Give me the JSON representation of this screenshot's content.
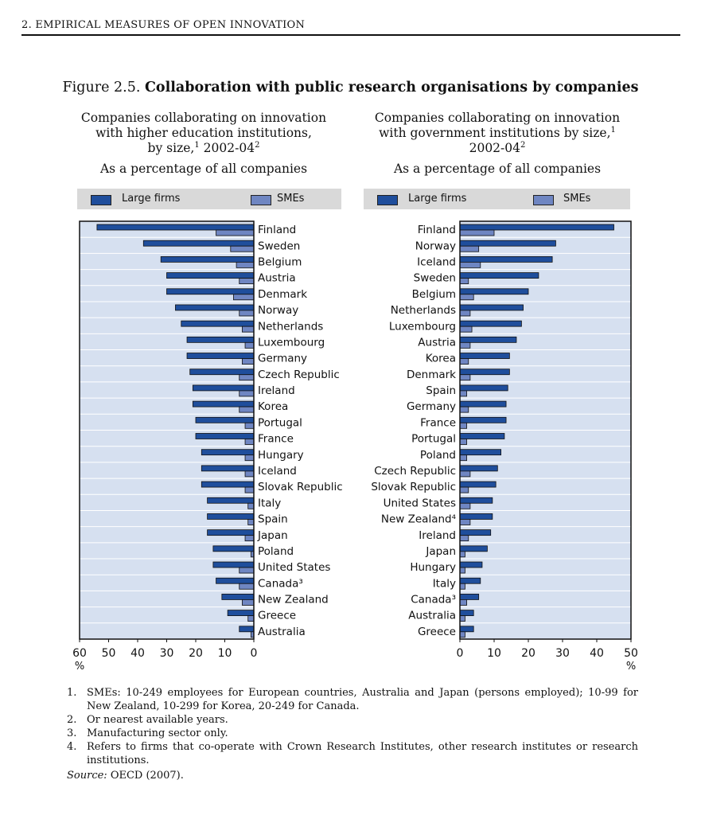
{
  "page": {
    "header": "2.  EMPIRICAL MEASURES OF OPEN INNOVATION",
    "figure_number": "Figure 2.5.",
    "figure_title": "Collaboration with public research organisations by companies"
  },
  "colors": {
    "large": "#1f4e9c",
    "sme": "#6f86c2",
    "plot_bg": "#d6e0f0",
    "legend_bg": "#d9d9d9"
  },
  "left_panel": {
    "title_line1": "Companies collaborating on innovation",
    "title_line2": "with higher education institutions,",
    "title_line3a": "by size,",
    "title_sup1": "1",
    "title_line3b": " 2002-04",
    "title_sup2": "2",
    "unit": "As a percentage of all companies"
  },
  "right_panel": {
    "title_line1": "Companies collaborating on innovation",
    "title_line2a": "with government institutions by size,",
    "title_sup1": "1",
    "title_line3": "2002-04",
    "title_sup2": "2",
    "unit": "As a percentage of all companies"
  },
  "legend": {
    "large": "Large firms",
    "sme": "SMEs"
  },
  "chart_data": [
    {
      "type": "bar",
      "orientation": "horizontal",
      "x_direction": "reversed",
      "categories": [
        "Finland",
        "Sweden",
        "Belgium",
        "Austria",
        "Denmark",
        "Norway",
        "Netherlands",
        "Luxembourg",
        "Germany",
        "Czech Republic",
        "Ireland",
        "Korea",
        "Portugal",
        "France",
        "Hungary",
        "Iceland",
        "Slovak Republic",
        "Italy",
        "Spain",
        "Japan",
        "Poland",
        "United States",
        "Canada³",
        "New Zealand",
        "Greece",
        "Australia"
      ],
      "series": [
        {
          "name": "Large firms",
          "values": [
            54,
            38,
            32,
            30,
            30,
            27,
            25,
            23,
            23,
            22,
            21,
            21,
            20,
            20,
            18,
            18,
            18,
            16,
            16,
            16,
            14,
            14,
            13,
            11,
            9,
            5
          ]
        },
        {
          "name": "SMEs",
          "values": [
            13,
            8,
            6,
            5,
            7,
            5,
            4,
            3,
            4,
            5,
            5,
            5,
            3,
            3,
            3,
            3,
            3,
            2,
            2,
            3,
            1,
            5,
            5,
            4,
            2,
            1
          ]
        }
      ],
      "xlim": [
        0,
        60
      ],
      "xticks": [
        60,
        50,
        40,
        30,
        20,
        10,
        0
      ],
      "unit_label": "%",
      "legend": "top"
    },
    {
      "type": "bar",
      "orientation": "horizontal",
      "categories": [
        "Finland",
        "Norway",
        "Iceland",
        "Sweden",
        "Belgium",
        "Netherlands",
        "Luxembourg",
        "Austria",
        "Korea",
        "Denmark",
        "Spain",
        "Germany",
        "France",
        "Portugal",
        "Poland",
        "Czech Republic",
        "Slovak Republic",
        "United States",
        "New Zealand⁴",
        "Ireland",
        "Japan",
        "Hungary",
        "Italy",
        "Canada³",
        "Australia",
        "Greece"
      ],
      "series": [
        {
          "name": "Large firms",
          "values": [
            45,
            28,
            27,
            23,
            20,
            18.5,
            18,
            16.5,
            14.5,
            14.5,
            14,
            13.5,
            13.5,
            13,
            12,
            11,
            10.5,
            9.5,
            9.5,
            9,
            8,
            6.5,
            6,
            5.5,
            4,
            4
          ]
        },
        {
          "name": "SMEs",
          "values": [
            10,
            5.5,
            6,
            2.5,
            4,
            3,
            3.5,
            3,
            2.5,
            3,
            2,
            2.5,
            2,
            2,
            2,
            3,
            2.5,
            3,
            3,
            2.5,
            1.5,
            1.5,
            1.5,
            2,
            1.5,
            1.5
          ]
        }
      ],
      "xlim": [
        0,
        50
      ],
      "xticks": [
        0,
        10,
        20,
        30,
        40,
        50
      ],
      "unit_label": "%",
      "legend": "top"
    }
  ],
  "footnotes": [
    {
      "num": "1.",
      "text": "SMEs: 10-249 employees for European countries, Australia and Japan (persons employed); 10-99 for New Zealand, 10-299 for Korea, 20-249 for Canada."
    },
    {
      "num": "2.",
      "text": "Or nearest available years."
    },
    {
      "num": "3.",
      "text": "Manufacturing sector only."
    },
    {
      "num": "4.",
      "text": "Refers to firms that co-operate with Crown Research Institutes, other research institutes or research institutions."
    }
  ],
  "source": {
    "label": "Source:",
    "text": "OECD (2007)."
  }
}
